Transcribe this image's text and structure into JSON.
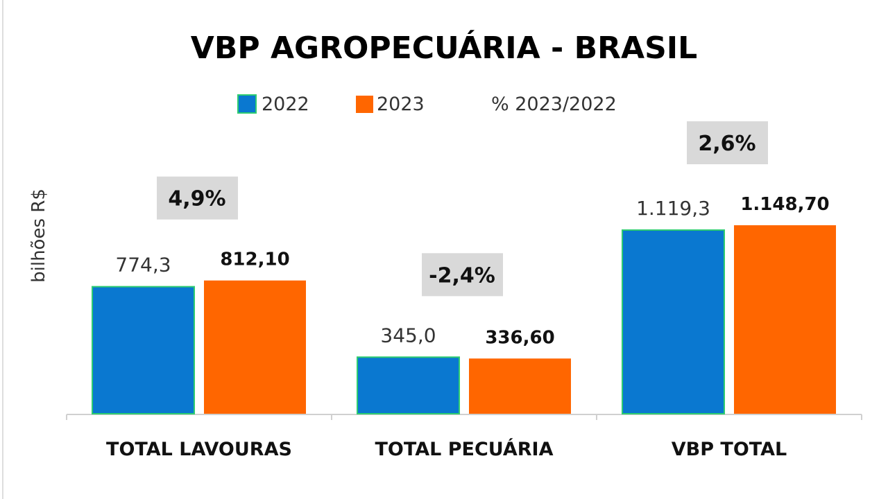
{
  "chart_data": {
    "type": "bar",
    "title": "VBP AGROPECUÁRIA  - BRASIL",
    "ylabel": "bilhões R$",
    "xlabel": "",
    "categories": [
      "TOTAL LAVOURAS",
      "TOTAL PECUÁRIA",
      "VBP TOTAL"
    ],
    "series": [
      {
        "name": "2022",
        "values": [
          774.3,
          345.0,
          1119.3
        ],
        "labels": [
          "774,3",
          "345,0",
          "1.119,3"
        ],
        "color": "#0a78d0",
        "border": "#2ecc71"
      },
      {
        "name": "2023",
        "values": [
          812.1,
          336.6,
          1148.7
        ],
        "labels": [
          "812,10",
          "336,60",
          "1.148,70"
        ],
        "color": "#ff6600"
      }
    ],
    "percent_change": {
      "name": "% 2023/2022",
      "values": [
        4.9,
        -2.4,
        2.6
      ],
      "labels": [
        "4,9%",
        "-2,4%",
        "2,6%"
      ],
      "box_color": "#d9d9d9"
    },
    "ylim": [
      0,
      1148.7
    ],
    "grid": false,
    "legend": "top"
  }
}
